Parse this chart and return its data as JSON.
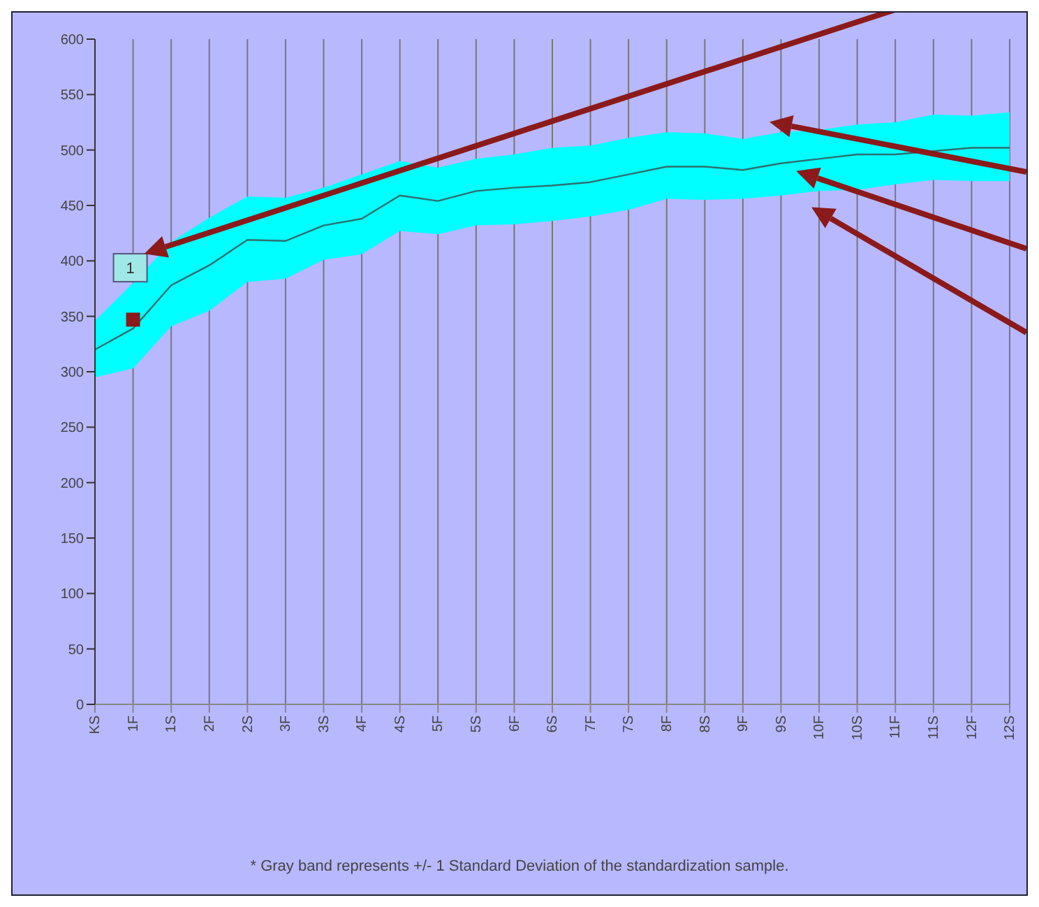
{
  "chart_data": {
    "type": "line",
    "categories": [
      "KS",
      "1F",
      "1S",
      "2F",
      "2S",
      "3F",
      "3S",
      "4F",
      "4S",
      "5F",
      "5S",
      "6F",
      "6S",
      "7F",
      "7S",
      "8F",
      "8S",
      "9F",
      "9S",
      "10F",
      "10S",
      "11F",
      "11S",
      "12F",
      "12S"
    ],
    "series": [
      {
        "color": "#2f6f6f",
        "values": [
          320,
          339,
          378,
          396,
          419,
          418,
          432,
          438,
          459,
          454,
          463,
          466,
          468,
          471,
          478,
          485,
          485,
          482,
          488,
          492,
          496,
          496,
          499,
          502,
          502
        ],
        "lower": [
          295,
          303,
          341,
          355,
          381,
          384,
          401,
          406,
          427,
          424,
          432,
          433,
          436,
          440,
          446,
          456,
          455,
          456,
          459,
          463,
          464,
          469,
          473,
          472,
          472
        ],
        "upper": [
          346,
          380,
          417,
          439,
          458,
          457,
          466,
          478,
          490,
          484,
          492,
          496,
          502,
          504,
          511,
          516,
          515,
          510,
          516,
          518,
          523,
          525,
          532,
          531,
          534
        ]
      },
      {
        "type": "scatter",
        "color": "#8b1a1a",
        "x": [
          "1F"
        ],
        "values": [
          347
        ],
        "marker": "square"
      }
    ],
    "ylim": [
      0,
      600
    ],
    "yticks": [
      0,
      50,
      100,
      150,
      200,
      250,
      300,
      350,
      400,
      450,
      500,
      550,
      600
    ],
    "grid": "x",
    "legend": false,
    "annotations": [
      "1",
      "* Gray band represents +/- 1 Standard Deviation of the standardization sample."
    ]
  }
}
